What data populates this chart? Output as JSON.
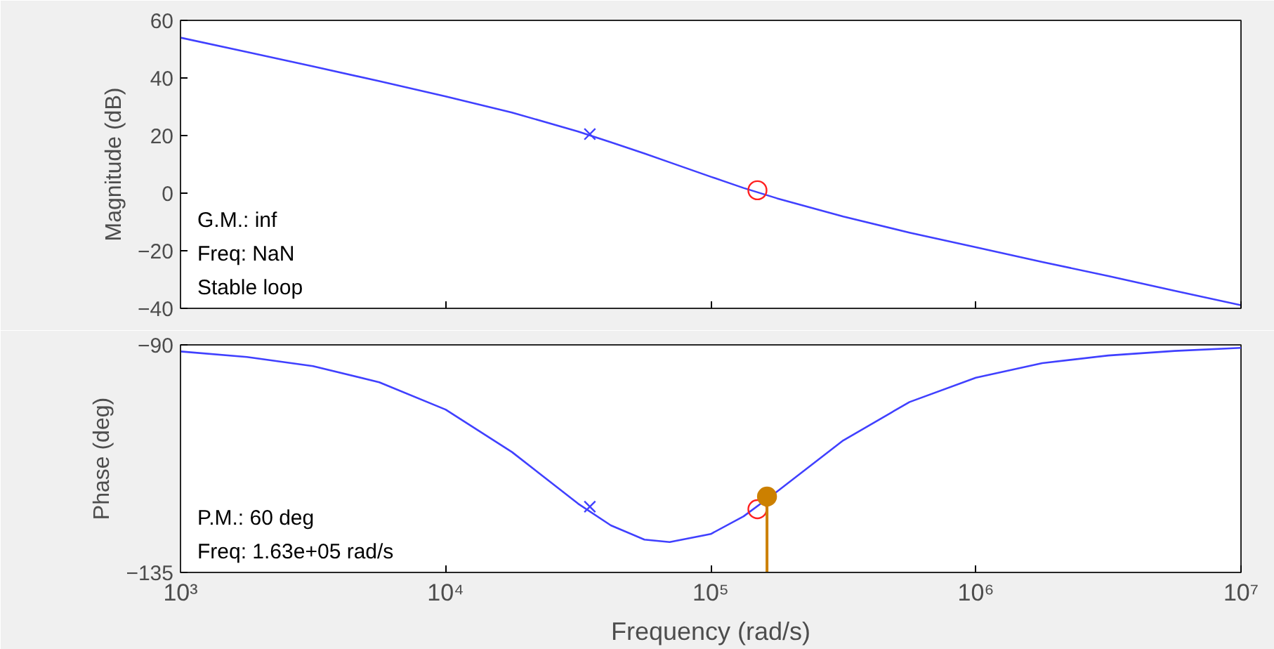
{
  "chart_data": [
    {
      "type": "line",
      "ylabel": "Magnitude (dB)",
      "log": "x",
      "grid": false,
      "tick_labels": "y",
      "marker": "none",
      "xlim": [
        1000,
        10000000
      ],
      "ylim": [
        -40,
        60
      ],
      "xticks": [
        {
          "value": 1000,
          "label": null
        },
        {
          "value": 10000,
          "label": null
        },
        {
          "value": 100000,
          "label": null
        },
        {
          "value": 1000000,
          "label": null
        },
        {
          "value": 10000000,
          "label": null
        }
      ],
      "yticks": [
        -40,
        -20,
        0,
        20,
        40,
        60
      ],
      "series": [
        {
          "color": "#4040ff",
          "x": [
            1000,
            1780,
            3160,
            5620,
            10000,
            17800,
            31600,
            42000,
            56200,
            70000,
            100000,
            133000,
            178000,
            316000,
            562000,
            1000000,
            1780000,
            3160000,
            5620000,
            10000000
          ],
          "values": [
            54.0,
            49.0,
            44.0,
            38.9,
            33.6,
            28.0,
            21.4,
            17.7,
            13.8,
            10.7,
            5.7,
            1.8,
            -1.8,
            -8.1,
            -13.7,
            -18.8,
            -23.9,
            -28.8,
            -33.9,
            -38.9
          ]
        },
        {
          "type": "scatter",
          "marker": "cross",
          "color": "#4040ff",
          "x": [
            35000
          ],
          "values": [
            20.5
          ]
        },
        {
          "type": "scatter",
          "marker": "circle",
          "color": "#ff2020",
          "x": [
            150000
          ],
          "values": [
            1
          ]
        }
      ],
      "annotations": [
        "G.M.: inf",
        "Freq: NaN",
        "Stable loop"
      ]
    },
    {
      "type": "line",
      "ylabel": "Phase (deg)",
      "xlabel": "Frequency (rad/s)",
      "log": "x",
      "grid": false,
      "marker": "none",
      "xlim": [
        1000,
        10000000
      ],
      "ylim": [
        -135,
        -90
      ],
      "xticks": [
        {
          "value": 1000,
          "label": "10³"
        },
        {
          "value": 10000,
          "label": "10⁴"
        },
        {
          "value": 100000,
          "label": "10⁵"
        },
        {
          "value": 1000000,
          "label": "10⁶"
        },
        {
          "value": 10000000,
          "label": "10⁷"
        }
      ],
      "yticks": [
        -135,
        -90
      ],
      "series": [
        {
          "color": "#4040ff",
          "x": [
            1000,
            1780,
            3160,
            5620,
            10000,
            17800,
            31600,
            42000,
            56200,
            70000,
            100000,
            133000,
            178000,
            316000,
            562000,
            1000000,
            1780000,
            3160000,
            5620000,
            10000000
          ],
          "values": [
            -91.3,
            -92.4,
            -94.2,
            -97.4,
            -102.8,
            -111.2,
            -121.4,
            -125.7,
            -128.5,
            -129.0,
            -127.4,
            -123.9,
            -119.0,
            -108.9,
            -101.3,
            -96.5,
            -93.6,
            -92.1,
            -91.2,
            -90.6
          ]
        },
        {
          "type": "scatter",
          "marker": "cross",
          "color": "#4040ff",
          "x": [
            35000
          ],
          "values": [
            -122
          ]
        },
        {
          "type": "scatter",
          "marker": "circle",
          "color": "#ff2020",
          "x": [
            150000
          ],
          "values": [
            -122.5
          ]
        },
        {
          "type": "scatter",
          "marker": "circle",
          "color": "#cc8000",
          "x": [
            163000
          ],
          "values": [
            -120
          ],
          "errors": [
            [
              -135,
              -120
            ]
          ]
        }
      ],
      "annotations": [
        "P.M.: 60 deg",
        "Freq: 1.63e+05 rad/s"
      ]
    }
  ]
}
